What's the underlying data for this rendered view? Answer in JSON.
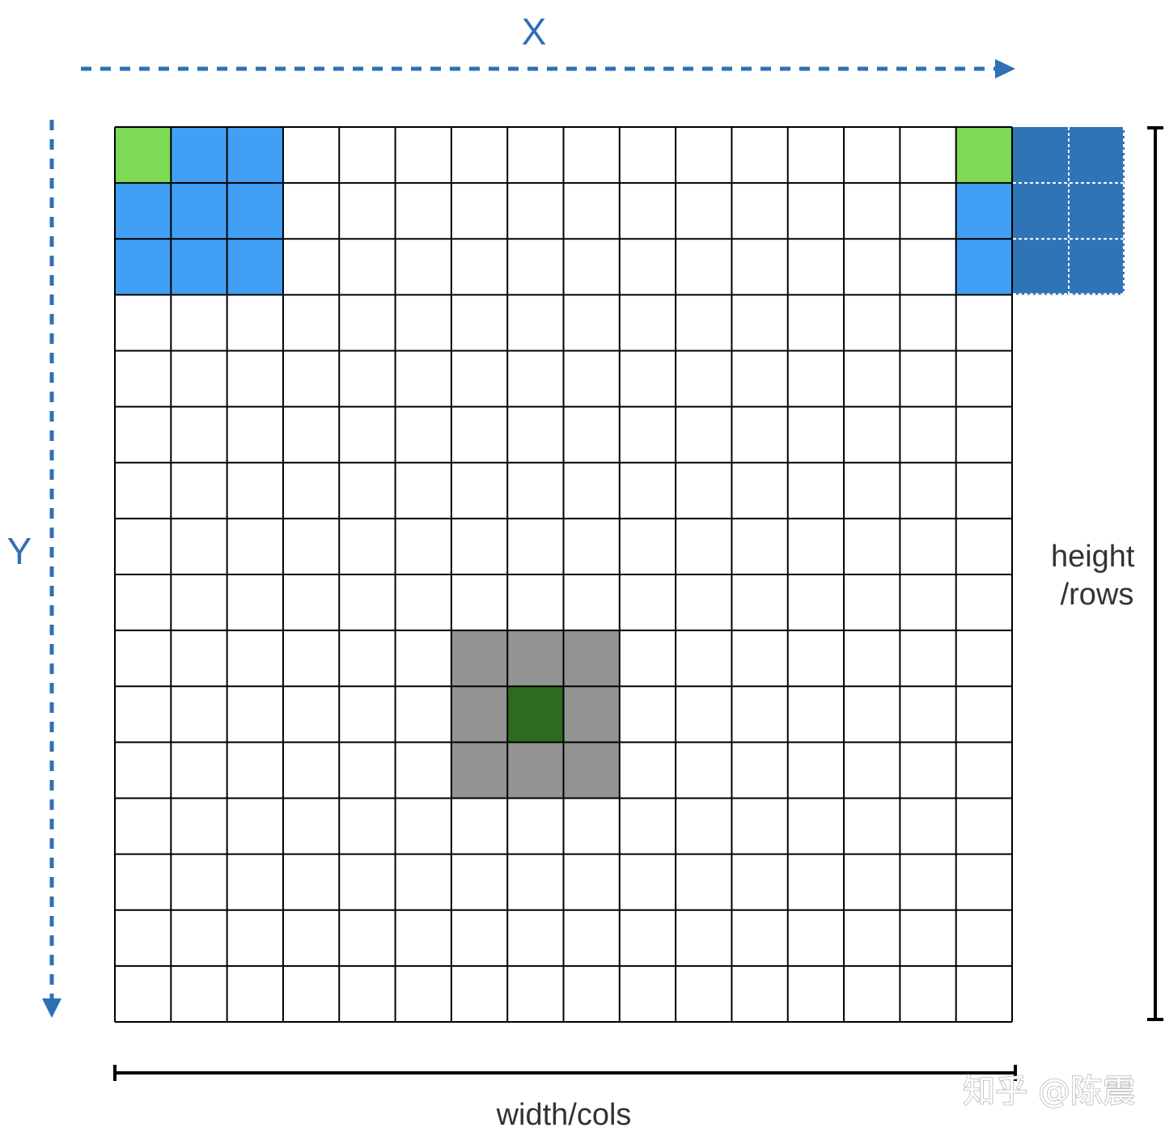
{
  "labels": {
    "x_axis": "X",
    "y_axis": "Y",
    "height_line1": "height",
    "height_line2": "/rows",
    "width": "width/cols",
    "watermark": "知乎 @陈震"
  },
  "grid": {
    "cols": 16,
    "rows": 16,
    "highlights": [
      {
        "name": "top-left-anchor",
        "cells": [
          [
            0,
            0
          ]
        ],
        "color": "#7ed957"
      },
      {
        "name": "top-left-neighborhood",
        "cells": [
          [
            1,
            0
          ],
          [
            2,
            0
          ],
          [
            0,
            1
          ],
          [
            1,
            1
          ],
          [
            2,
            1
          ],
          [
            0,
            2
          ],
          [
            1,
            2
          ],
          [
            2,
            2
          ]
        ],
        "color": "#419ff5"
      },
      {
        "name": "right-edge-anchor",
        "cells": [
          [
            15,
            0
          ]
        ],
        "color": "#7ed957"
      },
      {
        "name": "right-edge-neighborhood",
        "cells": [
          [
            15,
            1
          ],
          [
            15,
            2
          ]
        ],
        "color": "#419ff5"
      },
      {
        "name": "center-neighborhood",
        "cells": [
          [
            6,
            9
          ],
          [
            7,
            9
          ],
          [
            8,
            9
          ],
          [
            6,
            10
          ],
          [
            8,
            10
          ],
          [
            6,
            11
          ],
          [
            7,
            11
          ],
          [
            8,
            11
          ]
        ],
        "color": "#939393"
      },
      {
        "name": "center-anchor",
        "cells": [
          [
            7,
            10
          ]
        ],
        "color": "#2e6b1f"
      }
    ],
    "overflow": {
      "cols": 2,
      "rows": 3,
      "color": "#2f74b5"
    }
  },
  "colors": {
    "axis_arrow": "#2f6fb7",
    "grid_line": "#000000",
    "dimension_line": "#000000"
  }
}
